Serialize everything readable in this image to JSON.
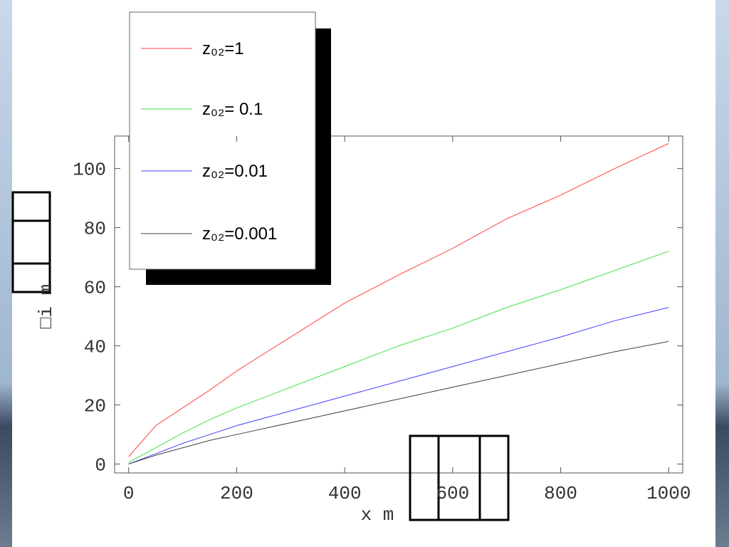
{
  "chart_data": {
    "type": "line",
    "x_label": "x  m",
    "y_label": "□i m",
    "x": [
      0,
      50,
      100,
      150,
      200,
      300,
      400,
      500,
      600,
      700,
      800,
      900,
      1000
    ],
    "series": [
      {
        "name": "z₀₂=1",
        "color": "#ff4040",
        "values": [
          2.5,
          13,
          19,
          25,
          31.5,
          43,
          54.5,
          64,
          73,
          83,
          91,
          100,
          108.5
        ]
      },
      {
        "name": "z₀₂= 0.1",
        "color": "#40e040",
        "values": [
          0.5,
          5.5,
          10.5,
          15,
          19,
          26,
          33,
          40,
          46,
          53,
          59,
          65.5,
          72
        ]
      },
      {
        "name": "z₀₂=0.01",
        "color": "#4040ff",
        "values": [
          0,
          3.5,
          7,
          10,
          13,
          18,
          23,
          28,
          33,
          38,
          43,
          48.5,
          53
        ]
      },
      {
        "name": "z₀₂=0.001",
        "color": "#404040",
        "values": [
          0,
          3,
          5.5,
          8,
          10,
          14,
          18,
          22,
          26,
          30,
          34,
          38,
          41.5
        ]
      }
    ],
    "xlim": [
      -26,
      1026
    ],
    "ylim": [
      -3,
      111
    ],
    "xticks": [
      0,
      200,
      400,
      600,
      800,
      1000
    ],
    "yticks": [
      0,
      20,
      40,
      60,
      80,
      100
    ]
  }
}
